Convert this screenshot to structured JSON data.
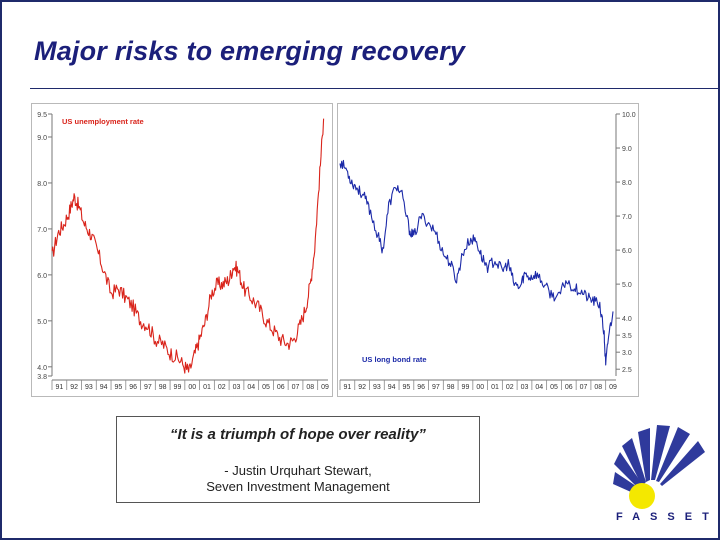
{
  "slide": {
    "title": "Major risks to emerging recovery",
    "quote": "“It is a triumph of hope over reality”",
    "attribution_line1": "- Justin Urquhart Stewart,",
    "attribution_line2": "Seven Investment Management",
    "logo_text": "FASSET",
    "colors": {
      "title": "#1b1f7a",
      "unemployment": "#d9241b",
      "bond": "#1c2aa8",
      "logo_blue": "#2f3a9c",
      "logo_yellow": "#f4e800"
    }
  },
  "chart_data": [
    {
      "type": "line",
      "title": "",
      "series_label": "US unemployment rate",
      "ylim": [
        3.8,
        9.5
      ],
      "yticks": [
        "9.5",
        "9.0",
        "8.0",
        "7.0",
        "6.0",
        "5.0",
        "4.0",
        "3.8"
      ],
      "ytick_values": [
        9.5,
        9.0,
        8.0,
        7.0,
        6.0,
        5.0,
        4.0,
        3.8
      ],
      "xlim": [
        1991.0,
        2009.7
      ],
      "xticks": [
        "91",
        "92",
        "93",
        "94",
        "95",
        "96",
        "97",
        "98",
        "99",
        "00",
        "01",
        "02",
        "03",
        "04",
        "05",
        "06",
        "07",
        "08",
        "09"
      ],
      "series": [
        {
          "name": "US unemployment rate",
          "x": [
            1991.0,
            1991.4,
            1991.8,
            1992.2,
            1992.5,
            1992.8,
            1993.2,
            1993.6,
            1994.0,
            1994.5,
            1995.0,
            1995.5,
            1996.0,
            1996.5,
            1997.0,
            1997.5,
            1998.0,
            1998.5,
            1999.0,
            1999.5,
            2000.0,
            2000.3,
            2000.7,
            2001.0,
            2001.4,
            2001.8,
            2002.2,
            2002.6,
            2003.0,
            2003.3,
            2003.6,
            2004.0,
            2004.5,
            2005.0,
            2005.5,
            2006.0,
            2006.5,
            2007.0,
            2007.4,
            2007.8,
            2008.2,
            2008.5,
            2008.8,
            2009.1,
            2009.4
          ],
          "y": [
            6.4,
            6.9,
            7.1,
            7.4,
            7.7,
            7.5,
            7.1,
            6.9,
            6.6,
            6.1,
            5.6,
            5.7,
            5.5,
            5.3,
            5.0,
            4.9,
            4.6,
            4.5,
            4.3,
            4.2,
            4.0,
            3.9,
            4.3,
            4.6,
            5.0,
            5.6,
            5.8,
            5.8,
            5.9,
            6.2,
            6.1,
            5.7,
            5.5,
            5.3,
            5.0,
            4.8,
            4.6,
            4.5,
            4.6,
            4.9,
            5.3,
            5.8,
            6.6,
            8.0,
            9.4
          ]
        }
      ]
    },
    {
      "type": "line",
      "title": "",
      "series_label": "US long bond rate",
      "ylim": [
        2.3,
        10.0
      ],
      "yticks": [
        "10.0",
        "9.0",
        "8.0",
        "7.0",
        "6.0",
        "5.0",
        "4.0",
        "3.5",
        "3.0",
        "2.5"
      ],
      "ytick_values": [
        10.0,
        9.0,
        8.0,
        7.0,
        6.0,
        5.0,
        4.0,
        3.5,
        3.0,
        2.5
      ],
      "xlim": [
        1991.0,
        2009.7
      ],
      "xticks": [
        "91",
        "92",
        "93",
        "94",
        "95",
        "96",
        "97",
        "98",
        "99",
        "00",
        "01",
        "02",
        "03",
        "04",
        "05",
        "06",
        "07",
        "08",
        "09"
      ],
      "series": [
        {
          "name": "US long bond rate",
          "x": [
            1991.0,
            1991.4,
            1991.8,
            1992.2,
            1992.6,
            1993.0,
            1993.5,
            1993.9,
            1994.3,
            1994.8,
            1995.2,
            1995.7,
            1996.0,
            1996.5,
            1997.0,
            1997.5,
            1998.0,
            1998.5,
            1998.9,
            1999.3,
            1999.8,
            2000.2,
            2000.6,
            2001.0,
            2001.5,
            2002.0,
            2002.4,
            2002.8,
            2003.2,
            2003.5,
            2003.9,
            2004.3,
            2004.8,
            2005.3,
            2005.8,
            2006.3,
            2006.8,
            2007.3,
            2007.8,
            2008.2,
            2008.6,
            2008.9,
            2009.0,
            2009.2,
            2009.5
          ],
          "y": [
            8.6,
            8.4,
            8.0,
            7.8,
            7.6,
            7.2,
            6.5,
            6.0,
            7.3,
            7.9,
            7.6,
            6.6,
            6.4,
            7.0,
            6.8,
            6.5,
            5.9,
            5.6,
            5.1,
            5.9,
            6.3,
            6.3,
            5.8,
            5.5,
            5.7,
            5.4,
            5.6,
            5.0,
            4.9,
            5.3,
            5.2,
            5.3,
            5.0,
            4.7,
            4.6,
            5.1,
            4.9,
            4.8,
            4.6,
            4.5,
            4.4,
            3.5,
            2.6,
            3.5,
            4.2
          ]
        }
      ]
    }
  ]
}
